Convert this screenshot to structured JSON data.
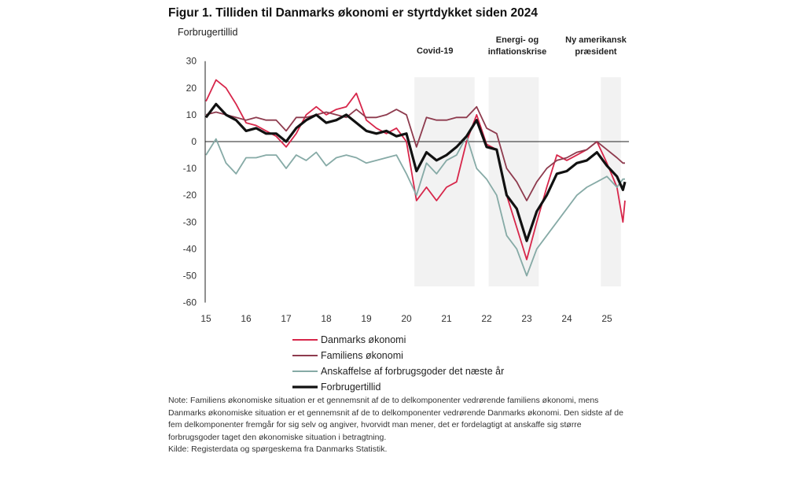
{
  "chart_data": {
    "type": "line",
    "title": "Figur 1. Tilliden til Danmarks økonomi er styrtdykket siden 2024",
    "ylabel": "Forbrugertillid",
    "xlabel": "",
    "ylim": [
      -60,
      30
    ],
    "yticks": [
      "30",
      "20",
      "10",
      "0",
      "-10",
      "-20",
      "-30",
      "-40",
      "-50",
      "-60"
    ],
    "xticks": [
      "15",
      "16",
      "17",
      "18",
      "19",
      "20",
      "21",
      "22",
      "23",
      "24",
      "25"
    ],
    "grid": false,
    "legend": "bottom",
    "shaded_periods": [
      {
        "label": "Covid-19",
        "from": 2020.2,
        "to": 2021.7
      },
      {
        "label": "Energi- og inflationskrise",
        "from": 2022.05,
        "to": 2023.3
      },
      {
        "label": "Ny amerikansk præsident",
        "from": 2024.85,
        "to": 2025.35
      }
    ],
    "series": [
      {
        "name": "Danmarks økonomi",
        "color": "#d7264a",
        "x": [
          2015,
          2015.25,
          2015.5,
          2015.75,
          2016,
          2016.25,
          2016.5,
          2016.75,
          2017,
          2017.25,
          2017.5,
          2017.75,
          2018,
          2018.25,
          2018.5,
          2018.75,
          2019,
          2019.25,
          2019.5,
          2019.75,
          2020,
          2020.25,
          2020.5,
          2020.75,
          2021,
          2021.25,
          2021.5,
          2021.75,
          2022,
          2022.25,
          2022.5,
          2022.75,
          2023,
          2023.25,
          2023.5,
          2023.75,
          2024,
          2024.25,
          2024.5,
          2024.75,
          2025,
          2025.25,
          2025.4,
          2025.45
        ],
        "y": [
          15,
          23,
          20,
          14,
          7,
          6,
          4,
          2,
          -2,
          3,
          10,
          13,
          10,
          12,
          13,
          18,
          8,
          5,
          3,
          5,
          0,
          -22,
          -17,
          -22,
          -17,
          -15,
          0,
          10,
          -1,
          -3,
          -20,
          -32,
          -44,
          -30,
          -17,
          -5,
          -7,
          -5,
          -3,
          0,
          -8,
          -17,
          -30,
          -22
        ]
      },
      {
        "name": "Familiens økonomi",
        "color": "#8e3b4e",
        "x": [
          2015,
          2015.25,
          2015.5,
          2015.75,
          2016,
          2016.25,
          2016.5,
          2016.75,
          2017,
          2017.25,
          2017.5,
          2017.75,
          2018,
          2018.25,
          2018.5,
          2018.75,
          2019,
          2019.25,
          2019.5,
          2019.75,
          2020,
          2020.25,
          2020.5,
          2020.75,
          2021,
          2021.25,
          2021.5,
          2021.75,
          2022,
          2022.25,
          2022.5,
          2022.75,
          2023,
          2023.25,
          2023.5,
          2023.75,
          2024,
          2024.25,
          2024.5,
          2024.75,
          2025,
          2025.25,
          2025.4,
          2025.45
        ],
        "y": [
          10,
          11,
          10,
          9,
          8,
          9,
          8,
          8,
          4,
          9,
          9,
          10,
          11,
          10,
          9,
          12,
          9,
          9,
          10,
          12,
          10,
          -2,
          9,
          8,
          8,
          9,
          9,
          13,
          5,
          3,
          -10,
          -15,
          -22,
          -15,
          -10,
          -7,
          -6,
          -4,
          -3,
          0,
          -3,
          -6,
          -8,
          -8
        ]
      },
      {
        "name": "Anskaffelse af forbrugsgoder det næste år",
        "color": "#86aaa6",
        "x": [
          2015,
          2015.25,
          2015.5,
          2015.75,
          2016,
          2016.25,
          2016.5,
          2016.75,
          2017,
          2017.25,
          2017.5,
          2017.75,
          2018,
          2018.25,
          2018.5,
          2018.75,
          2019,
          2019.25,
          2019.5,
          2019.75,
          2020,
          2020.25,
          2020.5,
          2020.75,
          2021,
          2021.25,
          2021.5,
          2021.75,
          2022,
          2022.25,
          2022.5,
          2022.75,
          2023,
          2023.25,
          2023.5,
          2023.75,
          2024,
          2024.25,
          2024.5,
          2024.75,
          2025,
          2025.25,
          2025.4,
          2025.45
        ],
        "y": [
          -5,
          1,
          -8,
          -12,
          -6,
          -6,
          -5,
          -5,
          -10,
          -5,
          -7,
          -4,
          -9,
          -6,
          -5,
          -6,
          -8,
          -7,
          -6,
          -5,
          -12,
          -20,
          -8,
          -12,
          -7,
          -5,
          2,
          -10,
          -14,
          -20,
          -35,
          -40,
          -50,
          -40,
          -35,
          -30,
          -25,
          -20,
          -17,
          -15,
          -13,
          -17,
          -14,
          -14
        ]
      },
      {
        "name": "Forbrugertillid",
        "color": "#111111",
        "x": [
          2015,
          2015.25,
          2015.5,
          2015.75,
          2016,
          2016.25,
          2016.5,
          2016.75,
          2017,
          2017.25,
          2017.5,
          2017.75,
          2018,
          2018.25,
          2018.5,
          2018.75,
          2019,
          2019.25,
          2019.5,
          2019.75,
          2020,
          2020.25,
          2020.5,
          2020.75,
          2021,
          2021.25,
          2021.5,
          2021.75,
          2022,
          2022.25,
          2022.5,
          2022.75,
          2023,
          2023.25,
          2023.5,
          2023.75,
          2024,
          2024.25,
          2024.5,
          2024.75,
          2025,
          2025.25,
          2025.4,
          2025.45
        ],
        "y": [
          9,
          14,
          10,
          8,
          4,
          5,
          3,
          3,
          0,
          5,
          8,
          10,
          7,
          8,
          10,
          7,
          4,
          3,
          4,
          2,
          3,
          -11,
          -4,
          -7,
          -5,
          -2,
          2,
          8,
          -2,
          -3,
          -20,
          -25,
          -37,
          -26,
          -20,
          -12,
          -11,
          -8,
          -7,
          -4,
          -9,
          -13,
          -18,
          -15
        ]
      }
    ]
  },
  "annotations": {
    "covid": "Covid-19",
    "energi_line1": "Energi- og",
    "energi_line2": "inflationskrise",
    "president_line1": "Ny amerikansk",
    "president_line2": "præsident"
  },
  "note": "Note: Familiens økonomiske situation er et gennemsnit af de to delkomponenter vedrørende familiens økonomi, mens Danmarks økonomiske situation er et gennemsnit af de to delkomponenter vedrørende Danmarks økonomi. Den sidste af de fem delkomponenter fremgår for sig selv og angiver, hvorvidt man mener, det er fordelagtigt at anskaffe sig større forbrugsgoder taget den økonomiske situation i betragtning.",
  "source": "Kilde: Registerdata og spørgeskema fra Danmarks Statistik."
}
